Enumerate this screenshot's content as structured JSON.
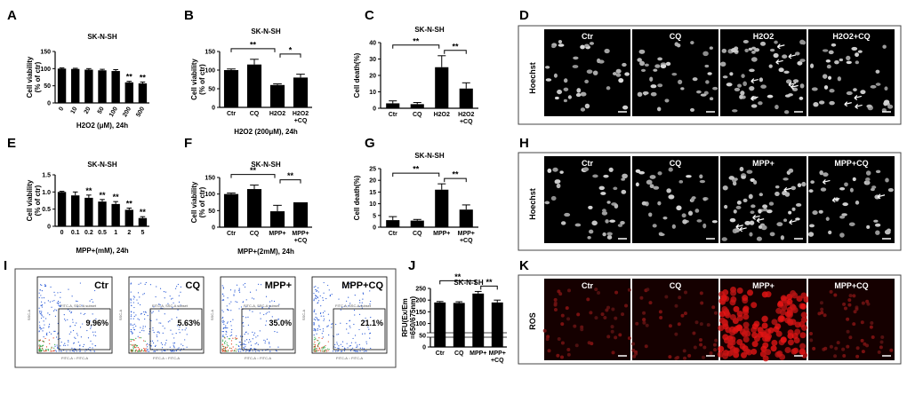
{
  "colors": {
    "bar": "#000000",
    "cell": "#bbbbbb",
    "ros": "#cc2222",
    "facs": "#2a5bd7"
  },
  "chart_data": [
    {
      "id": "A",
      "type": "bar",
      "title": "SK-N-SH",
      "categories": [
        "0",
        "10",
        "20",
        "50",
        "100",
        "200",
        "500"
      ],
      "values": [
        100,
        99,
        97,
        95,
        93,
        60,
        57
      ],
      "errors": [
        2,
        2,
        3,
        3,
        4,
        3,
        4
      ],
      "ylim": [
        0,
        150
      ],
      "yticks": [
        "0",
        "50",
        "100",
        "150"
      ],
      "ylabel": "Cell viability\n(% of ctr)",
      "xlabel": "H2O2 (μM), 24h",
      "sig": [
        "",
        "",
        "",
        "",
        "",
        "**",
        "**"
      ]
    },
    {
      "id": "B",
      "type": "bar",
      "title": "SK-N-SH",
      "categories": [
        "Ctr",
        "CQ",
        "H2O2",
        "H2O2\n+CQ"
      ],
      "values": [
        100,
        115,
        60,
        80
      ],
      "errors": [
        3,
        14,
        3,
        9
      ],
      "ylim": [
        0,
        150
      ],
      "yticks": [
        "0",
        "50",
        "100",
        "150"
      ],
      "ylabel": "Cell viability\n(% of ctr)",
      "xlabel": "H2O2 (200μM), 24h",
      "brackets": [
        {
          "from": 0,
          "to": 2,
          "label": "**"
        },
        {
          "from": 2,
          "to": 3,
          "label": "*"
        }
      ]
    },
    {
      "id": "C",
      "type": "bar",
      "title": "SK-N-SH",
      "categories": [
        "Ctr",
        "CQ",
        "H2O2",
        "H2O2\n+CQ"
      ],
      "values": [
        3,
        2.5,
        25,
        12
      ],
      "errors": [
        1.5,
        1,
        7,
        3.5
      ],
      "ylim": [
        0,
        40
      ],
      "yticks": [
        "0",
        "10",
        "20",
        "30",
        "40"
      ],
      "ylabel": "Cell death(%)",
      "xlabel": "",
      "brackets": [
        {
          "from": 0,
          "to": 2,
          "label": "**"
        },
        {
          "from": 2,
          "to": 3,
          "label": "**"
        }
      ]
    },
    {
      "id": "E",
      "type": "bar",
      "title": "SK-N-SH",
      "categories": [
        "0",
        "0.1",
        "0.2",
        "0.5",
        "1",
        "2",
        "5"
      ],
      "values": [
        1.0,
        0.9,
        0.83,
        0.72,
        0.65,
        0.48,
        0.24
      ],
      "errors": [
        0.02,
        0.1,
        0.08,
        0.06,
        0.07,
        0.05,
        0.04
      ],
      "ylim": [
        0,
        1.5
      ],
      "yticks": [
        "0",
        "0.5",
        "1.0",
        "1.5"
      ],
      "ylabel": "Cell viability\n(% of ctr)",
      "xlabel": "MPP+(mM), 24h",
      "sig": [
        "",
        "",
        "**",
        "**",
        "**",
        "**",
        "**"
      ]
    },
    {
      "id": "F",
      "type": "bar",
      "title": "SK-N-SH",
      "categories": [
        "Ctr",
        "CQ",
        "MPP+",
        "MPP+\n+CQ"
      ],
      "values": [
        100,
        115,
        48,
        75
      ],
      "errors": [
        3,
        12,
        18,
        0
      ],
      "ylim": [
        0,
        150
      ],
      "yticks": [
        "0",
        "50",
        "100",
        "150"
      ],
      "ylabel": "Cell viability\n(% of ctr)",
      "xlabel": "MPP+(2mM), 24h",
      "brackets": [
        {
          "from": 0,
          "to": 2,
          "label": "**"
        },
        {
          "from": 2,
          "to": 3,
          "label": "**"
        }
      ]
    },
    {
      "id": "G",
      "type": "bar",
      "title": "SK-N-SH",
      "categories": [
        "Ctr",
        "CQ",
        "MPP+",
        "MPP+\n+CQ"
      ],
      "values": [
        3,
        2.8,
        16,
        7.5
      ],
      "errors": [
        1.5,
        0.5,
        2.5,
        2
      ],
      "ylim": [
        0,
        25
      ],
      "yticks": [
        "0",
        "5",
        "10",
        "15",
        "20",
        "25"
      ],
      "ylabel": "Cell death(%)",
      "xlabel": "",
      "brackets": [
        {
          "from": 0,
          "to": 2,
          "label": "**"
        },
        {
          "from": 2,
          "to": 3,
          "label": "**"
        }
      ]
    },
    {
      "id": "J",
      "type": "bar",
      "title": "SK-N-SH",
      "categories": [
        "Ctr",
        "CQ",
        "MPP+",
        "MPP+\n+CQ"
      ],
      "values": [
        190,
        188,
        228,
        190
      ],
      "errors": [
        4,
        5,
        9,
        10
      ],
      "ylim": [
        0,
        250
      ],
      "yticks": [
        "0",
        "50",
        "100",
        "150",
        "200",
        "250"
      ],
      "ylabel": "RFU(Ex/Em\n=650/675nm)",
      "xlabel": "",
      "brackets": [
        {
          "from": 0,
          "to": 2,
          "label": "**"
        },
        {
          "from": 2,
          "to": 3,
          "label": "**"
        }
      ]
    }
  ],
  "panels": {
    "D": {
      "label": "D",
      "row_label": "Hoechst",
      "conditions": [
        "Ctr",
        "CQ",
        "H2O2",
        "H2O2+CQ"
      ]
    },
    "H": {
      "label": "H",
      "row_label": "Hoechst",
      "conditions": [
        "Ctr",
        "CQ",
        "MPP+",
        "MPP+CQ"
      ]
    },
    "I": {
      "label": "I",
      "conditions": [
        "Ctr",
        "CQ",
        "MPP+",
        "MPP+CQ"
      ],
      "percents": [
        "9.96%",
        "5.63%",
        "35.0%",
        "21.1%"
      ],
      "gate": "FITC-A, SSC-A subset",
      "xaxis": "FITC-A :: FITC-A",
      "yaxis": "SSC-A"
    },
    "K": {
      "label": "K",
      "row_label": "ROS",
      "conditions": [
        "Ctr",
        "CQ",
        "MPP+",
        "MPP+CQ"
      ]
    }
  }
}
